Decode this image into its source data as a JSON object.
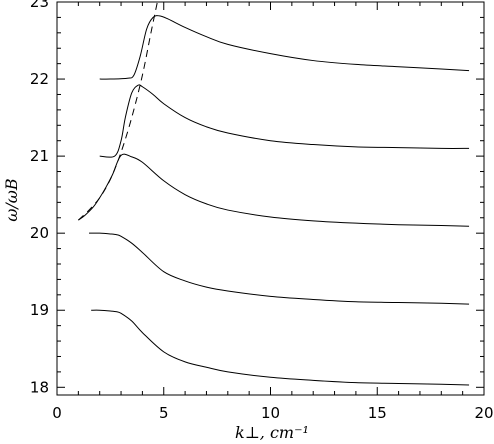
{
  "chart_data": {
    "type": "line",
    "title": "",
    "xlabel": "k⊥, cm⁻¹",
    "ylabel": "ω/ωB",
    "xlim": [
      0,
      20
    ],
    "ylim": [
      17.9,
      23
    ],
    "xticks": [
      0,
      5,
      10,
      15,
      20
    ],
    "xtick_labels": [
      "0",
      "5",
      "10",
      "15",
      "20"
    ],
    "yticks": [
      18,
      19,
      20,
      21,
      22,
      23
    ],
    "ytick_labels": [
      "18",
      "19",
      "20",
      "21",
      "22",
      "23"
    ],
    "grid": false,
    "legend": "none",
    "series": [
      {
        "style": "solid",
        "x": [
          1.6,
          2.0,
          2.5,
          2.8,
          3.0,
          3.5,
          4.0,
          5.0,
          6.0,
          7.0,
          8.0,
          10.0,
          12.0,
          14.0,
          16.0,
          18.0,
          19.3
        ],
        "y": [
          19.0,
          19.0,
          18.99,
          18.98,
          18.96,
          18.86,
          18.71,
          18.46,
          18.33,
          18.26,
          18.2,
          18.13,
          18.09,
          18.06,
          18.05,
          18.04,
          18.03
        ]
      },
      {
        "style": "solid",
        "x": [
          1.5,
          2.0,
          2.5,
          2.8,
          3.0,
          3.5,
          4.0,
          5.0,
          6.0,
          7.0,
          8.0,
          10.0,
          12.0,
          14.0,
          16.0,
          18.0,
          19.3
        ],
        "y": [
          20.0,
          20.0,
          19.99,
          19.98,
          19.96,
          19.87,
          19.75,
          19.5,
          19.38,
          19.3,
          19.25,
          19.18,
          19.14,
          19.11,
          19.1,
          19.09,
          19.08
        ]
      },
      {
        "style": "solid",
        "x": [
          1.0,
          1.3,
          1.7,
          2.0,
          2.3,
          2.6,
          3.0,
          3.5,
          4.0,
          5.0,
          6.0,
          7.0,
          8.0,
          10.0,
          12.0,
          14.0,
          16.0,
          18.0,
          19.3
        ],
        "y": [
          20.17,
          20.23,
          20.34,
          20.46,
          20.6,
          20.76,
          21.01,
          20.99,
          20.92,
          20.68,
          20.5,
          20.38,
          20.3,
          20.21,
          20.16,
          20.13,
          20.11,
          20.1,
          20.09
        ]
      },
      {
        "style": "solid",
        "x": [
          2.0,
          2.7,
          3.0,
          3.2,
          3.5,
          3.8,
          4.0,
          4.5,
          5.0,
          6.0,
          7.0,
          8.0,
          10.0,
          12.0,
          14.0,
          16.0,
          18.0,
          19.3
        ],
        "y": [
          21.0,
          21.0,
          21.2,
          21.5,
          21.82,
          21.92,
          21.9,
          21.8,
          21.68,
          21.5,
          21.38,
          21.3,
          21.2,
          21.15,
          21.12,
          21.11,
          21.1,
          21.1
        ]
      },
      {
        "style": "solid",
        "x": [
          2.0,
          2.5,
          3.3,
          3.6,
          3.9,
          4.2,
          4.5,
          4.8,
          5.2,
          6.0,
          7.0,
          8.0,
          10.0,
          12.0,
          14.0,
          16.0,
          18.0,
          19.3
        ],
        "y": [
          22.0,
          22.0,
          22.01,
          22.05,
          22.3,
          22.65,
          22.8,
          22.82,
          22.78,
          22.67,
          22.55,
          22.45,
          22.33,
          22.24,
          22.19,
          22.16,
          22.13,
          22.11
        ]
      },
      {
        "style": "dashed",
        "x": [
          1.0,
          1.5,
          2.0,
          2.5,
          3.0,
          3.5,
          4.0,
          4.4,
          4.7
        ],
        "y": [
          20.17,
          20.3,
          20.46,
          20.7,
          21.05,
          21.5,
          22.05,
          22.6,
          23.0
        ]
      }
    ]
  }
}
